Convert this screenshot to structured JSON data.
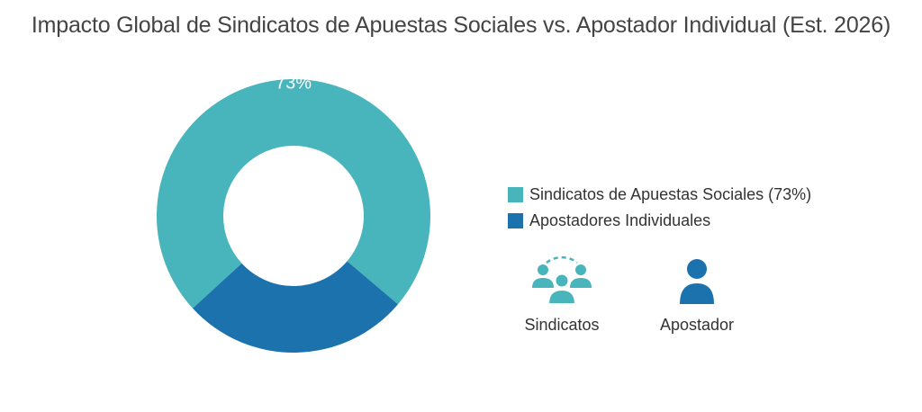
{
  "chart_data": {
    "type": "pie",
    "title": "Impacto Global de Sindicatos de Apuestas Sociales vs. Apostador Individual (Est. 2026)",
    "style": "donut",
    "slices": [
      {
        "label": "Sindicatos de Apuestas Sociales (73%)",
        "value": 73,
        "data_label": "73%",
        "color": "#47b5bb"
      },
      {
        "label": "Apostadores Individuales",
        "value": 27,
        "data_label": "",
        "color": "#1c72ac"
      }
    ],
    "legend_position": "right"
  },
  "icons": [
    {
      "name": "group-icon",
      "label": "Sindicatos",
      "color": "#47b5bb"
    },
    {
      "name": "person-icon",
      "label": "Apostador",
      "color": "#1c72ac"
    }
  ]
}
